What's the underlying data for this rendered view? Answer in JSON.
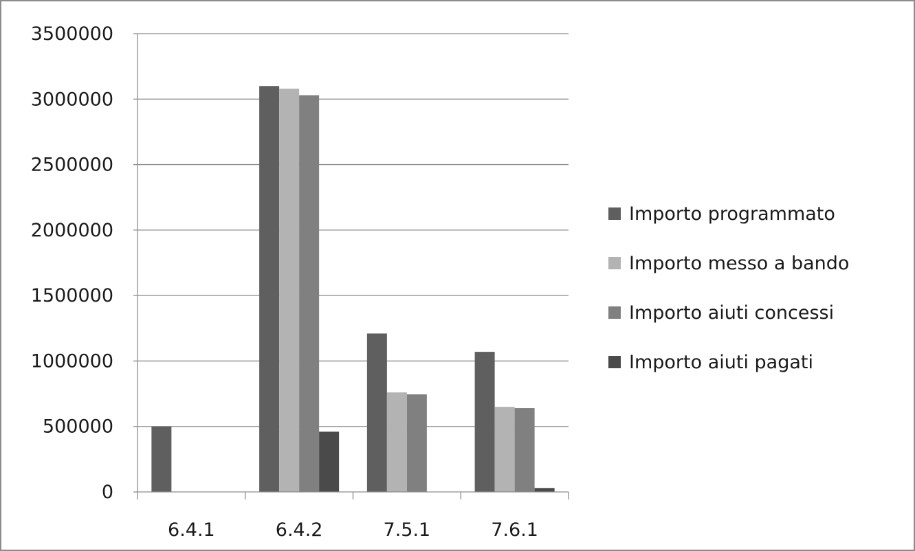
{
  "chart_data": {
    "type": "bar",
    "title": "",
    "xlabel": "",
    "ylabel": "",
    "categories": [
      "6.4.1",
      "6.4.2",
      "7.5.1",
      "7.6.1"
    ],
    "ylim": [
      0,
      3500000
    ],
    "yticks": [
      0,
      500000,
      1000000,
      1500000,
      2000000,
      2500000,
      3000000,
      3500000
    ],
    "grid": true,
    "legend_position": "right",
    "series": [
      {
        "name": "Importo programmato",
        "color": "#5f5f5f",
        "values": [
          500000,
          3100000,
          1210000,
          1070000
        ]
      },
      {
        "name": "Importo messo a bando",
        "color": "#b3b3b3",
        "values": [
          0,
          3080000,
          760000,
          650000
        ]
      },
      {
        "name": "Importo aiuti concessi",
        "color": "#808080",
        "values": [
          0,
          3030000,
          745000,
          640000
        ]
      },
      {
        "name": "Importo aiuti pagati",
        "color": "#4a4a4a",
        "values": [
          0,
          460000,
          0,
          30000
        ]
      }
    ]
  }
}
